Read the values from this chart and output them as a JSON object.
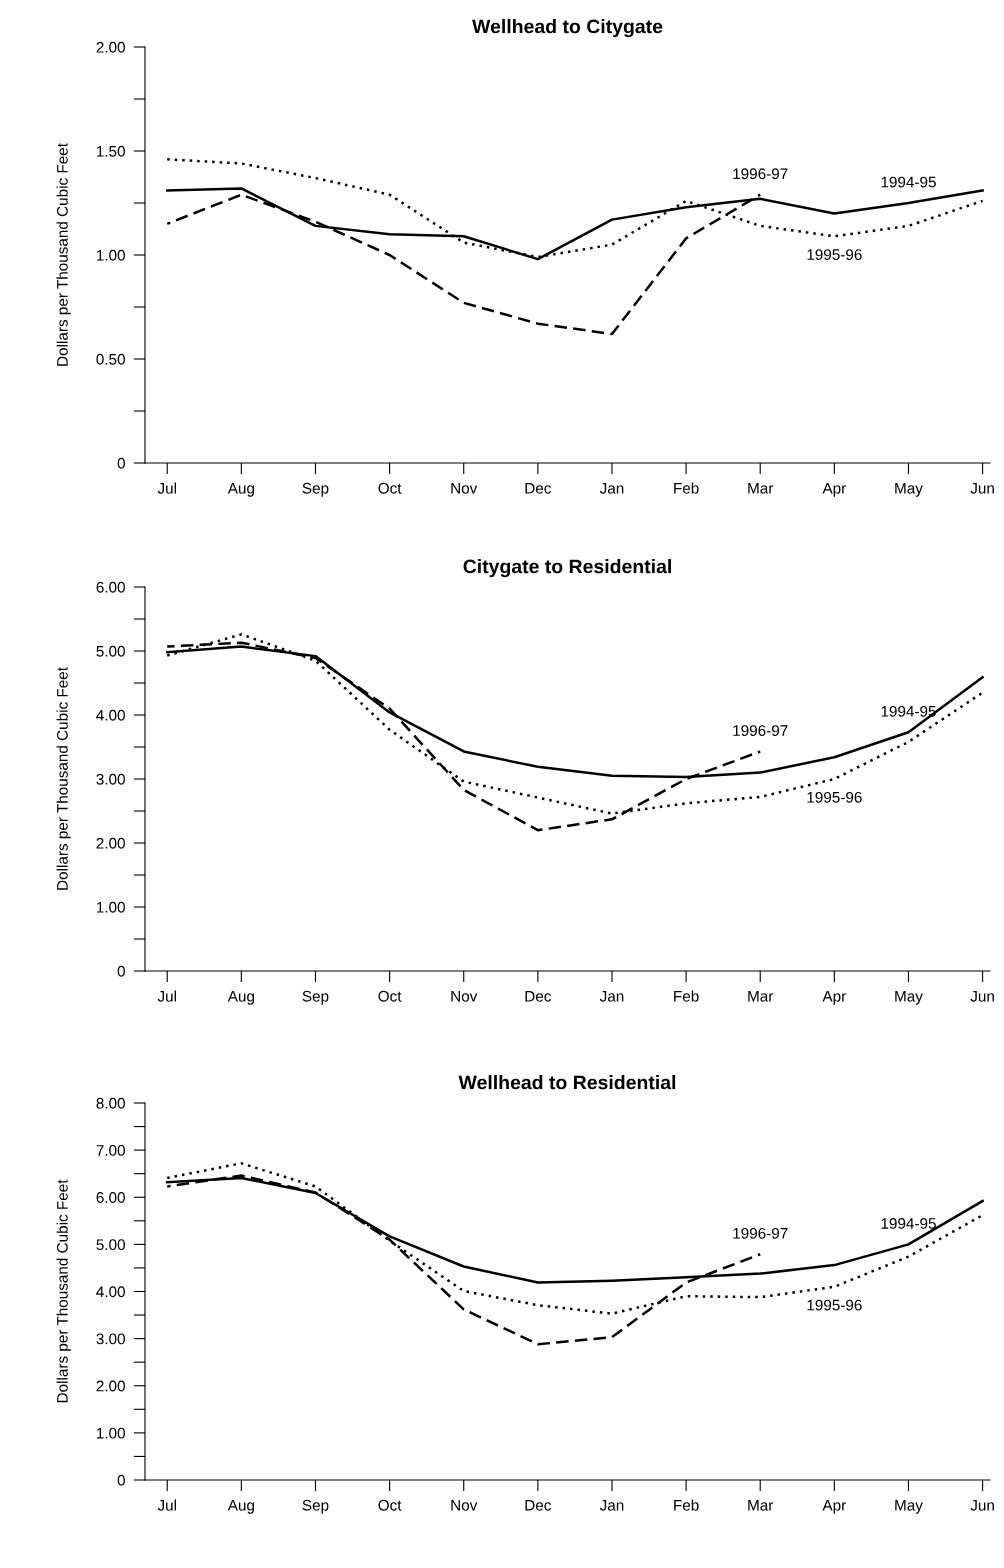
{
  "chart_data": [
    {
      "type": "line",
      "title": "Wellhead to Citygate",
      "ylabel": "Dollars per Thousand Cubic Feet",
      "categories": [
        "Jul",
        "Aug",
        "Sep",
        "Oct",
        "Nov",
        "Dec",
        "Jan",
        "Feb",
        "Mar",
        "Apr",
        "May",
        "Jun"
      ],
      "series": [
        {
          "name": "1994-95",
          "color": "#000000",
          "line_style": "solid",
          "values": [
            1.31,
            1.32,
            1.14,
            1.1,
            1.09,
            0.98,
            1.17,
            1.23,
            1.27,
            1.2,
            1.25,
            1.31
          ]
        },
        {
          "name": "1995-96",
          "color": "#000000",
          "line_style": "dotted",
          "values": [
            1.46,
            1.44,
            1.37,
            1.29,
            1.06,
            0.99,
            1.05,
            1.26,
            1.14,
            1.09,
            1.14,
            1.26
          ]
        },
        {
          "name": "1996-97",
          "color": "#000000",
          "line_style": "dashed",
          "values": [
            1.15,
            1.29,
            1.16,
            1.0,
            0.77,
            0.67,
            0.62,
            1.08,
            1.29,
            null,
            null,
            null
          ]
        }
      ],
      "ylim": [
        0,
        2
      ],
      "yticks": [
        0,
        {
          "value": 0.25,
          "label": null
        },
        {
          "value": 0.5,
          "label": "0.50"
        },
        {
          "value": 0.75,
          "label": null
        },
        {
          "value": 1,
          "label": "1.00"
        },
        {
          "value": 1.25,
          "label": null
        },
        {
          "value": 1.5,
          "label": "1.50"
        },
        {
          "value": 1.75,
          "label": null
        },
        {
          "value": 2,
          "label": "2.00"
        }
      ],
      "grid": false,
      "marker": "none"
    },
    {
      "type": "line",
      "title": "Citygate to Residential",
      "ylabel": "Dollars per Thousand Cubic Feet",
      "categories": [
        "Jul",
        "Aug",
        "Sep",
        "Oct",
        "Nov",
        "Dec",
        "Jan",
        "Feb",
        "Mar",
        "Apr",
        "May",
        "Jun"
      ],
      "series": [
        {
          "name": "1994-95",
          "color": "#000000",
          "line_style": "solid",
          "values": [
            4.98,
            5.07,
            4.92,
            4.04,
            3.43,
            3.19,
            3.05,
            3.03,
            3.1,
            3.34,
            3.73,
            4.59
          ]
        },
        {
          "name": "1995-96",
          "color": "#000000",
          "line_style": "dotted",
          "values": [
            4.93,
            5.26,
            4.85,
            3.77,
            2.96,
            2.71,
            2.46,
            2.62,
            2.72,
            3.0,
            3.58,
            4.35
          ]
        },
        {
          "name": "1996-97",
          "color": "#000000",
          "line_style": "dashed",
          "values": [
            5.07,
            5.13,
            4.89,
            4.1,
            2.83,
            2.2,
            2.37,
            3.0,
            3.43,
            null,
            null,
            null
          ]
        }
      ],
      "ylim": [
        0,
        6
      ],
      "yticks": [
        0,
        {
          "value": 0.5,
          "label": null
        },
        {
          "value": 1,
          "label": "1.00"
        },
        {
          "value": 1.5,
          "label": null
        },
        {
          "value": 2,
          "label": "2.00"
        },
        {
          "value": 2.5,
          "label": null
        },
        {
          "value": 3,
          "label": "3.00"
        },
        {
          "value": 3.5,
          "label": null
        },
        {
          "value": 4,
          "label": "4.00"
        },
        {
          "value": 4.5,
          "label": null
        },
        {
          "value": 5,
          "label": "5.00"
        },
        {
          "value": 5.5,
          "label": null
        },
        {
          "value": 6,
          "label": "6.00"
        }
      ],
      "grid": false,
      "marker": "none"
    },
    {
      "type": "line",
      "title": "Wellhead to Residential",
      "ylabel": "Dollars per Thousand Cubic Feet",
      "categories": [
        "Jul",
        "Aug",
        "Sep",
        "Oct",
        "Nov",
        "Dec",
        "Jan",
        "Feb",
        "Mar",
        "Apr",
        "May",
        "Jun"
      ],
      "series": [
        {
          "name": "1994-95",
          "color": "#000000",
          "line_style": "solid",
          "values": [
            6.32,
            6.41,
            6.09,
            5.17,
            4.53,
            4.19,
            4.23,
            4.3,
            4.38,
            4.56,
            5.0,
            5.92
          ]
        },
        {
          "name": "1995-96",
          "color": "#000000",
          "line_style": "dotted",
          "values": [
            6.41,
            6.72,
            6.23,
            5.08,
            4.01,
            3.71,
            3.53,
            3.9,
            3.88,
            4.1,
            4.74,
            5.62
          ]
        },
        {
          "name": "1996-97",
          "color": "#000000",
          "line_style": "dashed",
          "values": [
            6.23,
            6.46,
            6.1,
            5.1,
            3.62,
            2.88,
            3.03,
            4.19,
            4.79,
            null,
            null,
            null
          ]
        }
      ],
      "ylim": [
        0,
        8
      ],
      "yticks": [
        0,
        {
          "value": 0.5,
          "label": null
        },
        {
          "value": 1,
          "label": "1.00"
        },
        {
          "value": 1.5,
          "label": null
        },
        {
          "value": 2,
          "label": "2.00"
        },
        {
          "value": 2.5,
          "label": null
        },
        {
          "value": 3,
          "label": "3.00"
        },
        {
          "value": 3.5,
          "label": null
        },
        {
          "value": 4,
          "label": "4.00"
        },
        {
          "value": 4.5,
          "label": null
        },
        {
          "value": 5,
          "label": "5.00"
        },
        {
          "value": 5.5,
          "label": null
        },
        {
          "value": 6,
          "label": "6.00"
        },
        {
          "value": 6.5,
          "label": null
        },
        {
          "value": 7,
          "label": "7.00"
        },
        {
          "value": 7.5,
          "label": null
        },
        {
          "value": 8,
          "label": "8.00"
        }
      ],
      "grid": false,
      "marker": "none"
    }
  ]
}
